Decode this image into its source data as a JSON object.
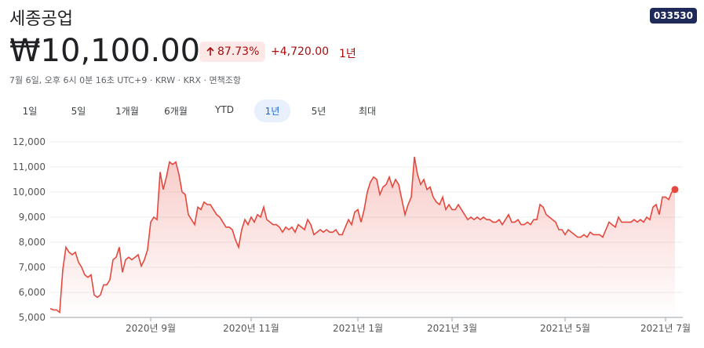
{
  "header": {
    "title": "세종공업",
    "ticker": "033530",
    "price": "₩10,100.00",
    "change_pct": "87.73%",
    "change_abs": "+4,720.00",
    "period": "1년",
    "info": "7월 6일, 오후 6시 0분 16초 UTC+9 · KRW · KRX · 면책조항"
  },
  "tabs": [
    "1일",
    "5일",
    "1개월",
    "6개월",
    "YTD",
    "1년",
    "5년",
    "최대"
  ],
  "selected_tab": 5,
  "chart_data": {
    "type": "line",
    "color": "#e5483d",
    "grid": true,
    "ylim": [
      5000,
      12000
    ],
    "yticks": [
      {
        "value": 5000,
        "label": "5,000"
      },
      {
        "value": 6000,
        "label": "6,000"
      },
      {
        "value": 7000,
        "label": "7,000"
      },
      {
        "value": 8000,
        "label": "8,000"
      },
      {
        "value": 9000,
        "label": "9,000"
      },
      {
        "value": 10000,
        "label": "10,000"
      },
      {
        "value": 11000,
        "label": "11,000"
      },
      {
        "value": 12000,
        "label": "12,000"
      }
    ],
    "categories": [
      null,
      null,
      null,
      null,
      null,
      null,
      null,
      null,
      null,
      null,
      null,
      null,
      null,
      null,
      null,
      null,
      null,
      null,
      null,
      null,
      null,
      null,
      null,
      null,
      null,
      null,
      null,
      null,
      null,
      null,
      null,
      null,
      "2020년 9월",
      null,
      null,
      null,
      null,
      null,
      null,
      null,
      null,
      null,
      null,
      null,
      null,
      null,
      null,
      null,
      null,
      null,
      null,
      null,
      null,
      null,
      null,
      null,
      null,
      null,
      null,
      null,
      null,
      null,
      null,
      null,
      "2020년 11월",
      null,
      null,
      null,
      null,
      null,
      null,
      null,
      null,
      null,
      null,
      null,
      null,
      null,
      null,
      null,
      null,
      null,
      null,
      null,
      null,
      null,
      null,
      null,
      null,
      null,
      null,
      null,
      null,
      null,
      null,
      null,
      null,
      null,
      "2021년 1월",
      null,
      null,
      null,
      null,
      null,
      null,
      null,
      null,
      null,
      null,
      null,
      null,
      null,
      null,
      null,
      null,
      null,
      null,
      null,
      null,
      null,
      null,
      null,
      null,
      null,
      null,
      null,
      null,
      null,
      "2021년 3월",
      null,
      null,
      null,
      null,
      null,
      null,
      null,
      null,
      null,
      null,
      null,
      null,
      null,
      null,
      null,
      null,
      null,
      null,
      null,
      null,
      null,
      null,
      null,
      null,
      null,
      null,
      null,
      null,
      null,
      null,
      null,
      null,
      null,
      null,
      null,
      "2021년 5월",
      null,
      null,
      null,
      null,
      null,
      null,
      null,
      null,
      null,
      null,
      null,
      null,
      null,
      null,
      null,
      null,
      null,
      null,
      null,
      null,
      null,
      null,
      null,
      null,
      null,
      null,
      null,
      null,
      null,
      null,
      null,
      "2021년 7월",
      null,
      null,
      null
    ],
    "values": [
      5350,
      5300,
      5300,
      5200,
      6900,
      7800,
      7600,
      7500,
      7600,
      7200,
      7000,
      6700,
      6600,
      6700,
      5900,
      5800,
      5900,
      6300,
      6300,
      6500,
      7300,
      7400,
      7800,
      6800,
      7300,
      7400,
      7300,
      7400,
      7500,
      7050,
      7300,
      7700,
      8800,
      9000,
      8900,
      10800,
      10100,
      10600,
      11200,
      11100,
      11200,
      10700,
      10000,
      9900,
      9100,
      8900,
      8700,
      9400,
      9300,
      9600,
      9500,
      9500,
      9300,
      9100,
      9000,
      8800,
      8600,
      8600,
      8500,
      8100,
      7800,
      8500,
      8900,
      8700,
      9000,
      8800,
      9100,
      9000,
      9400,
      8900,
      8800,
      8700,
      8700,
      8600,
      8400,
      8600,
      8500,
      8600,
      8400,
      8700,
      8600,
      8500,
      8900,
      8700,
      8300,
      8400,
      8500,
      8400,
      8500,
      8400,
      8400,
      8500,
      8300,
      8300,
      8600,
      8900,
      8700,
      9200,
      9300,
      8800,
      9300,
      10000,
      10400,
      10600,
      10500,
      9900,
      10200,
      10300,
      10600,
      10200,
      10500,
      10300,
      9700,
      9100,
      9500,
      9800,
      11400,
      10700,
      10300,
      10500,
      10100,
      10200,
      9800,
      9600,
      9500,
      9800,
      9300,
      9500,
      9300,
      9300,
      9500,
      9300,
      9100,
      8900,
      9000,
      8900,
      9000,
      8900,
      9000,
      8900,
      8900,
      8800,
      8800,
      8900,
      8700,
      8900,
      9100,
      8800,
      8800,
      8900,
      8700,
      8700,
      8800,
      8700,
      8900,
      8900,
      9500,
      9400,
      9100,
      9000,
      8900,
      8800,
      8500,
      8500,
      8300,
      8500,
      8400,
      8300,
      8200,
      8200,
      8300,
      8200,
      8400,
      8300,
      8300,
      8300,
      8200,
      8500,
      8800,
      8700,
      8600,
      9000,
      8800,
      8800,
      8800,
      8800,
      8900,
      8800,
      8900,
      8800,
      9000,
      8900,
      9400,
      9500,
      9100,
      9800,
      9800,
      9700,
      10000,
      10100
    ]
  }
}
